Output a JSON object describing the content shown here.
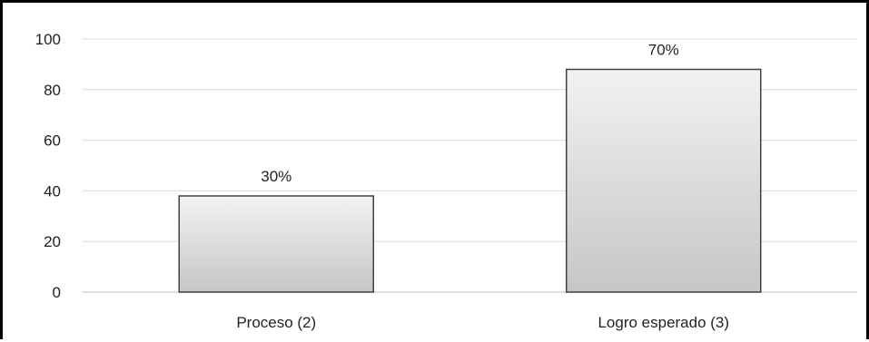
{
  "chart_data": {
    "type": "bar",
    "title": "",
    "xlabel": "",
    "ylabel": "",
    "categories": [
      "Proceso (2)",
      "Logro esperado (3)"
    ],
    "values": [
      38,
      88
    ],
    "data_labels": [
      "30%",
      "70%"
    ],
    "ylim": [
      0,
      100
    ],
    "yticks": [
      0,
      20,
      40,
      60,
      80,
      100
    ],
    "ytick_labels": [
      "0",
      "20",
      "40",
      "60",
      "80",
      "100"
    ],
    "grid": true,
    "legend": "none",
    "colors": {
      "bar_top": "#f2f2f2",
      "bar_bottom": "#c6c6c6",
      "bar_stroke": "#404040",
      "grid": "#d9d9d9",
      "axis": "#bfbfbf",
      "frame": "#000000"
    }
  }
}
